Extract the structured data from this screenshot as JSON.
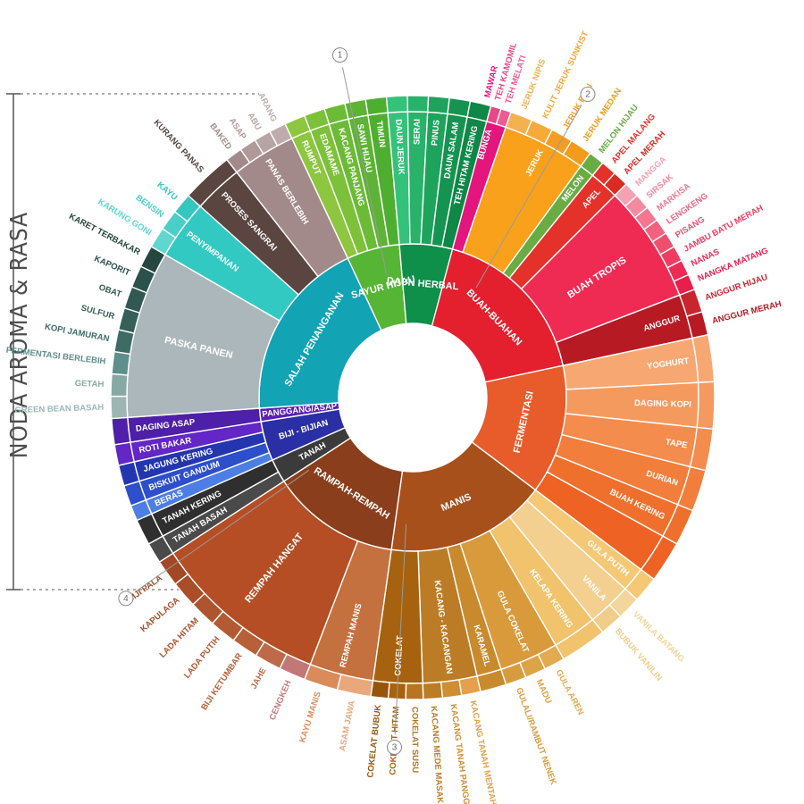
{
  "side_title": "NODA AROMA & RASA",
  "marker_labels": [
    "1",
    "2",
    "3",
    "4"
  ],
  "categories": [
    {
      "name": "BUAH-BUAHAN",
      "color": "#E4202F",
      "start": 13,
      "end": 78,
      "subs": [
        {
          "name": "BUNGA",
          "color": "#E4157C",
          "span": 6,
          "leaves": [
            {
              "name": "MAWAR",
              "color": "#E4157C"
            },
            {
              "name": "TEH KAMOMIL",
              "color": "#E94785"
            },
            {
              "name": "TEH MELATI",
              "color": "#EE5B93"
            }
          ]
        },
        {
          "name": "JERUK",
          "color": "#F9A11B",
          "span": 17,
          "leaves": [
            {
              "name": "JERUK NIPIS",
              "color": "#F6B14F"
            },
            {
              "name": "KULIT JERUK SUNKIST",
              "color": "#F7A93A"
            },
            {
              "name": "JERUK BALI",
              "color": "#F59D22"
            },
            {
              "name": "JERUK MEDAN",
              "color": "#F39B1A"
            }
          ]
        },
        {
          "name": "MELON",
          "color": "#69AC44",
          "span": 3,
          "leaves": [
            {
              "name": "MELON HIJAU",
              "color": "#69AC44"
            }
          ]
        },
        {
          "name": "APEL",
          "color": "#E4312A",
          "span": 6,
          "leaves": [
            {
              "name": "APEL MALANG",
              "color": "#E4312A"
            },
            {
              "name": "APEL MERAH",
              "color": "#D92A23"
            }
          ]
        },
        {
          "name": "BUAH TROPIS",
          "color": "#F02B53",
          "span": 24,
          "leaves": [
            {
              "name": "MANGGA",
              "color": "#F6A0B2"
            },
            {
              "name": "SIRSAK",
              "color": "#F48AA0"
            },
            {
              "name": "MARKISA",
              "color": "#F4768F"
            },
            {
              "name": "LENGKENG",
              "color": "#F2627F"
            },
            {
              "name": "PISANG",
              "color": "#F04E6F"
            },
            {
              "name": "JAMBU BATU MERAH",
              "color": "#EF3D61"
            },
            {
              "name": "NANAS",
              "color": "#EE2B55"
            },
            {
              "name": "NANGKA MATANG",
              "color": "#EC1D4A"
            }
          ]
        },
        {
          "name": "ANGGUR",
          "color": "#B71A23",
          "span": 9,
          "leaves": [
            {
              "name": "ANGGUR HIJAU",
              "color": "#C9252E"
            },
            {
              "name": "ANGGUR MERAH",
              "color": "#B71A23"
            }
          ]
        }
      ]
    },
    {
      "name": "FERMENTASI",
      "color": "#E75C2A",
      "start": 78,
      "end": 127,
      "subs": [
        {
          "name": "YOGHURT",
          "color": "#F7A872",
          "span": 9,
          "leaves": [
            {
              "name": "",
              "color": "#F7A872"
            }
          ]
        },
        {
          "name": "DAGING KOPI",
          "color": "#F59A5F",
          "span": 9,
          "leaves": [
            {
              "name": "",
              "color": "#F59A5F"
            }
          ]
        },
        {
          "name": "TAPE",
          "color": "#F38C4C",
          "span": 8,
          "leaves": [
            {
              "name": "",
              "color": "#F38C4C"
            }
          ]
        },
        {
          "name": "DURIAN",
          "color": "#F17E3B",
          "span": 8,
          "leaves": [
            {
              "name": "",
              "color": "#F17E3B"
            }
          ]
        },
        {
          "name": "BUAH KERING",
          "color": "#EF702C",
          "span": 7,
          "leaves": [
            {
              "name": "",
              "color": "#EF702C"
            }
          ]
        },
        {
          "name": "",
          "color": "#EE6323",
          "span": 8,
          "leaves": [
            {
              "name": "",
              "color": "#EE6323"
            }
          ]
        }
      ]
    },
    {
      "name": "MANIS",
      "color": "#A8501B",
      "start": 127,
      "end": 188,
      "subs": [
        {
          "name": "GULA PUTIH",
          "color": "#F5C876",
          "span": 5,
          "leaves": [
            {
              "name": "",
              "color": "#F5C876"
            }
          ]
        },
        {
          "name": "VANILA",
          "color": "#F3D08F",
          "span": 9,
          "leaves": [
            {
              "name": "VANILA BATANG",
              "color": "#F4D59B"
            },
            {
              "name": "BUBUK VANILIN",
              "color": "#F1CD8A"
            }
          ]
        },
        {
          "name": "KELAPA KERING",
          "color": "#F0C36C",
          "span": 9,
          "leaves": [
            {
              "name": "",
              "color": "#F0C36C"
            }
          ]
        },
        {
          "name": "GULA COKELAT",
          "color": "#D99A3C",
          "span": 12,
          "leaves": [
            {
              "name": "GULA AREN",
              "color": "#E4AA50"
            },
            {
              "name": "MADU",
              "color": "#DDA347"
            },
            {
              "name": "GULALI/RAMBUT NENEK",
              "color": "#D89B3E"
            }
          ]
        },
        {
          "name": "KARAMEL",
          "color": "#C98A2E",
          "span": 5,
          "leaves": [
            {
              "name": "",
              "color": "#C98A2E"
            }
          ]
        },
        {
          "name": "KACANG - KACANGAN",
          "color": "#BC7C25",
          "span": 11,
          "leaves": [
            {
              "name": "KACANG TANAH MENTAH",
              "color": "#E4A04A"
            },
            {
              "name": "KACANG TANAH PANGGANG",
              "color": "#D08E33"
            },
            {
              "name": "KACANG MEDE MASAK",
              "color": "#BC7C25"
            }
          ]
        },
        {
          "name": "COKELAT",
          "color": "#A6620F",
          "span": 10,
          "leaves": [
            {
              "name": "COKELAT SUSU",
              "color": "#B8751F"
            },
            {
              "name": "COKELAT HITAM",
              "color": "#A6620F"
            },
            {
              "name": "COKELAT BUBUK",
              "color": "#95560C"
            }
          ]
        }
      ]
    },
    {
      "name": "RAMPAH-REMPAH",
      "color": "#8B3E1B",
      "start": 188,
      "end": 237,
      "subs": [
        {
          "name": "REMPAH MANIS",
          "color": "#C5703F",
          "span": 13,
          "leaves": [
            {
              "name": "ASAM JAWA",
              "color": "#E8A87C"
            },
            {
              "name": "KAYU MANIS",
              "color": "#D98B5A"
            }
          ]
        },
        {
          "name": "REMPAH HANGAT",
          "color": "#B54E24",
          "span": 36,
          "leaves": [
            {
              "name": "CENGKEH",
              "color": "#C37878"
            },
            {
              "name": "JAHE",
              "color": "#BE6A48"
            },
            {
              "name": "BIJI KETUMBAR",
              "color": "#B8603A"
            },
            {
              "name": "LADA PUTIH",
              "color": "#B35A33"
            },
            {
              "name": "LADA HITAM",
              "color": "#AE542E"
            },
            {
              "name": "KAPULAGA",
              "color": "#A94E29"
            },
            {
              "name": "BIJI PALA",
              "color": "#A24824"
            }
          ]
        }
      ]
    },
    {
      "name": "TANAH",
      "color": "#3B3B3B",
      "start": 237,
      "end": 246,
      "subs": [
        {
          "name": "TANAH BASAH",
          "color": "#4A4A4A",
          "span": 4,
          "leaves": [
            {
              "name": "",
              "color": "#4A4A4A"
            }
          ]
        },
        {
          "name": "TANAH KERING",
          "color": "#2F2F2F",
          "span": 5,
          "leaves": [
            {
              "name": "",
              "color": "#2F2F2F"
            }
          ]
        }
      ]
    },
    {
      "name": "BIJI - BIJIAN",
      "color": "#2A2FA6",
      "start": 246,
      "end": 261,
      "subs": [
        {
          "name": "BERAS",
          "color": "#4D7EE6",
          "span": 3,
          "leaves": [
            {
              "name": "",
              "color": "#4D7EE6"
            }
          ]
        },
        {
          "name": "BISKUIT GANDUM",
          "color": "#2D4FCB",
          "span": 4,
          "leaves": [
            {
              "name": "",
              "color": "#2D4FCB"
            }
          ]
        },
        {
          "name": "JAGUNG KERING",
          "color": "#2336B0",
          "span": 4,
          "leaves": [
            {
              "name": "",
              "color": "#2336B0"
            }
          ]
        },
        {
          "name": "ROTI BAKAR",
          "color": "#6227C6",
          "span": 4,
          "leaves": [
            {
              "name": "",
              "color": "#6227C6"
            }
          ]
        }
      ]
    },
    {
      "name": "PANGGANG/ASAP",
      "color": "#5A1FB5",
      "start": 261,
      "end": 266,
      "subs": [
        {
          "name": "DAGING ASAP",
          "color": "#4E1FA8",
          "span": 5,
          "leaves": [
            {
              "name": "",
              "color": "#4E1FA8"
            }
          ]
        }
      ]
    },
    {
      "name": "SALAH PENANGANAN",
      "color": "#12A3B5",
      "start": 266,
      "end": 335,
      "subs": [
        {
          "name": "PASKA PANEN",
          "color": "#ABB7BA",
          "span": 34,
          "leaves": [
            {
              "name": "GREEN BEAN BASAH",
              "color": "#9CB7B3"
            },
            {
              "name": "GETAH",
              "color": "#87A9A4"
            },
            {
              "name": "FERMENTASI BERLEBIH",
              "color": "#5F8F8B"
            },
            {
              "name": "KOPI JAMURAN",
              "color": "#3E6B65"
            },
            {
              "name": "SULFUR",
              "color": "#375F59"
            },
            {
              "name": "OBAT",
              "color": "#315852"
            },
            {
              "name": "KAPORIT",
              "color": "#2C514B"
            },
            {
              "name": "KARET TERBAKAR",
              "color": "#254740"
            }
          ]
        },
        {
          "name": "PENYIMPANAN",
          "color": "#33C9C3",
          "span": 12,
          "leaves": [
            {
              "name": "KARUNG GONI",
              "color": "#5FD6D0"
            },
            {
              "name": "BENSIN",
              "color": "#4ACFC8"
            },
            {
              "name": "KAYU",
              "color": "#36C6C0"
            }
          ]
        },
        {
          "name": "PROSES SANGRAI",
          "color": "#5A4540",
          "span": 10,
          "leaves": [
            {
              "name": "KURANG PANAS",
              "color": "#5A4540"
            }
          ]
        },
        {
          "name": "PANAS BERLEBIH",
          "color": "#A38A8A",
          "span": 13,
          "leaves": [
            {
              "name": "BAKED",
              "color": "#A38A8A"
            },
            {
              "name": "ASAP",
              "color": "#AF9999"
            },
            {
              "name": "ABU",
              "color": "#B7A4A4"
            },
            {
              "name": "ARANG",
              "color": "#BEACAC"
            }
          ]
        }
      ]
    },
    {
      "name": "SAYUR HIJAU",
      "color": "#56B535",
      "start": 335,
      "end": 355,
      "subs": [
        {
          "name": "RUMPUT",
          "color": "#8DC63F",
          "span": 4,
          "leaves": [
            {
              "name": "",
              "color": "#8DC63F"
            }
          ]
        },
        {
          "name": "EDAMAME",
          "color": "#7DC13A",
          "span": 4,
          "leaves": [
            {
              "name": "",
              "color": "#7DC13A"
            }
          ]
        },
        {
          "name": "KACANG PANJANG",
          "color": "#6CBB37",
          "span": 4,
          "leaves": [
            {
              "name": "",
              "color": "#6CBB37"
            }
          ]
        },
        {
          "name": "SAWI HIJAU",
          "color": "#5DB434",
          "span": 4,
          "leaves": [
            {
              "name": "",
              "color": "#5DB434"
            }
          ]
        },
        {
          "name": "TIMUN",
          "color": "#4EAE30",
          "span": 4,
          "leaves": [
            {
              "name": "",
              "color": "#4EAE30"
            }
          ]
        }
      ]
    },
    {
      "name": "DAUN HERBAL",
      "color": "#0E8F4A",
      "start": 355,
      "end": 375,
      "subs": [
        {
          "name": "DAUN JERUK",
          "color": "#34C27A",
          "span": 4,
          "leaves": [
            {
              "name": "",
              "color": "#34C27A"
            }
          ]
        },
        {
          "name": "SERAI",
          "color": "#28B26A",
          "span": 4,
          "leaves": [
            {
              "name": "",
              "color": "#28B26A"
            }
          ]
        },
        {
          "name": "PINUS",
          "color": "#1EA35C",
          "span": 4,
          "leaves": [
            {
              "name": "",
              "color": "#1EA35C"
            }
          ]
        },
        {
          "name": "DAUN SALAM",
          "color": "#159451",
          "span": 4,
          "leaves": [
            {
              "name": "",
              "color": "#159451"
            }
          ]
        },
        {
          "name": "TEH HITAM KERING",
          "color": "#0E8747",
          "span": 4,
          "leaves": [
            {
              "name": "",
              "color": "#0E8747"
            }
          ]
        }
      ]
    }
  ]
}
